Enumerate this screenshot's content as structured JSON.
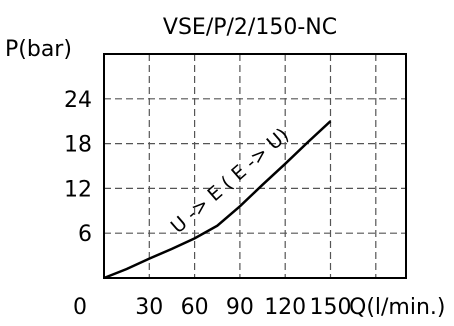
{
  "chart_data": {
    "type": "line",
    "title": "VSE/P/2/150-NC",
    "ylabel": "P(bar)",
    "xlabel": "Q(l/min.)",
    "origin_label": "0",
    "x_ticks": [
      30,
      60,
      90,
      120,
      150
    ],
    "y_ticks": [
      6,
      12,
      18,
      24
    ],
    "xlim": [
      0,
      200
    ],
    "ylim": [
      0,
      30
    ],
    "grid": true,
    "series": [
      {
        "name": "U -> E ( E -> U)",
        "x": [
          0,
          15,
          30,
          45,
          60,
          75,
          90,
          105,
          120,
          135,
          150
        ],
        "y": [
          0,
          1.2,
          2.6,
          3.9,
          5.3,
          7.0,
          9.6,
          12.5,
          15.3,
          18.2,
          21.0
        ]
      }
    ]
  }
}
